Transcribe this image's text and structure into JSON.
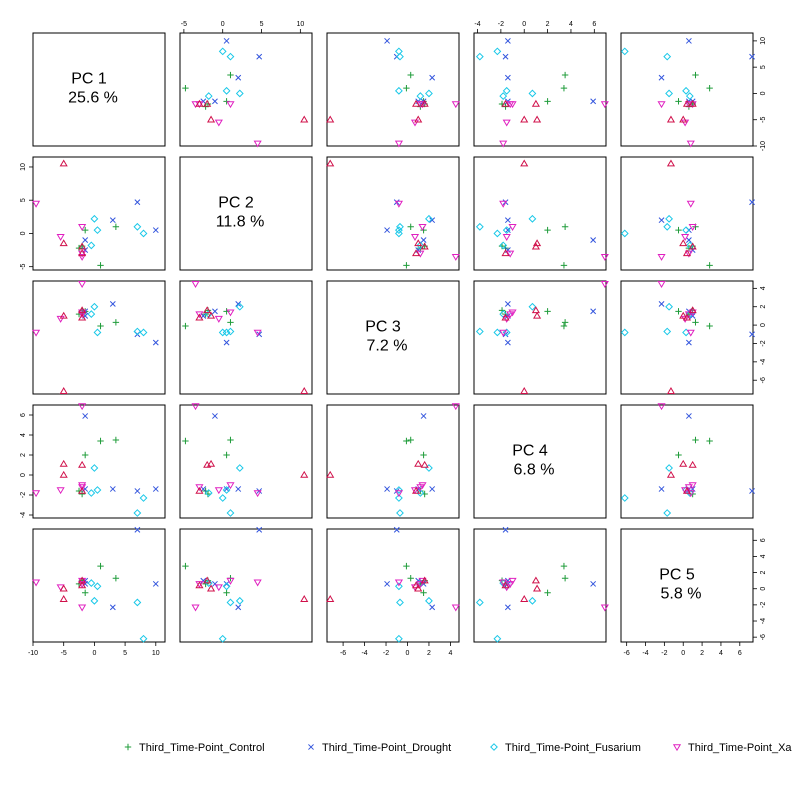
{
  "chart_data": {
    "type": "scatter",
    "subtype": "pairs-matrix",
    "grid": false,
    "legend_position": "bottom",
    "variables": [
      {
        "name": "PC 1",
        "percent": "25.6 %",
        "range": [
          -10,
          11.5
        ],
        "ticks": [
          -10,
          -5,
          0,
          5,
          10
        ]
      },
      {
        "name": "PC 2",
        "percent": "11.8 %",
        "range": [
          -5.5,
          11.5
        ],
        "ticks": [
          -5,
          0,
          5,
          10
        ]
      },
      {
        "name": "PC 3",
        "percent": "7.2 %",
        "range": [
          -7.5,
          4.8
        ],
        "ticks": [
          -6,
          -4,
          -2,
          0,
          2,
          4
        ]
      },
      {
        "name": "PC 4",
        "percent": "6.8 %",
        "range": [
          -4.3,
          7
        ],
        "ticks": [
          -4,
          -2,
          0,
          2,
          4,
          6
        ]
      },
      {
        "name": "PC 5",
        "percent": "5.8 %",
        "range": [
          -6.6,
          7.4
        ],
        "ticks": [
          -6,
          -4,
          -2,
          0,
          2,
          4,
          6
        ]
      }
    ],
    "series": [
      {
        "name": "Third_Time-Point_Control",
        "marker": "plus",
        "color": "#1f9c3a",
        "points": [
          [
            -1.5,
            0.5,
            1.5,
            2.0,
            -0.5
          ],
          [
            1.0,
            -4.8,
            -0.1,
            3.4,
            2.8
          ],
          [
            -2.5,
            -2.2,
            1.2,
            -1.6,
            0.6
          ],
          [
            -2.0,
            -1.9,
            1.6,
            -1.9,
            1.0
          ],
          [
            3.5,
            1.0,
            0.3,
            3.5,
            1.3
          ]
        ]
      },
      {
        "name": "Third_Time-Point_Drought",
        "marker": "x",
        "color": "#3355dd",
        "points": [
          [
            10.0,
            0.5,
            -1.9,
            -1.4,
            0.6
          ],
          [
            7.0,
            4.7,
            -1.0,
            -1.6,
            7.3
          ],
          [
            3.0,
            2.0,
            2.3,
            -1.4,
            -2.3
          ],
          [
            -1.5,
            -1.0,
            1.5,
            5.9,
            0.6
          ],
          [
            -1.5,
            -2.5,
            1.0,
            -1.4,
            1.0
          ]
        ]
      },
      {
        "name": "Third_Time-Point_Fusarium",
        "marker": "diamond",
        "color": "#19c8e8",
        "points": [
          [
            0.0,
            2.2,
            2.0,
            0.7,
            -1.5
          ],
          [
            7.0,
            1.0,
            -0.7,
            -3.8,
            -1.7
          ],
          [
            0.5,
            0.5,
            -0.8,
            -1.5,
            0.3
          ],
          [
            8.0,
            0.0,
            -0.8,
            -2.3,
            -6.2
          ],
          [
            -0.5,
            -1.8,
            1.2,
            -1.8,
            0.7
          ]
        ]
      },
      {
        "name": "Third_Time-Point_Xanthomonas",
        "marker": "triangle-down",
        "color": "#e020c0",
        "points": [
          [
            -9.5,
            4.5,
            -0.8,
            -1.8,
            0.8
          ],
          [
            -2.0,
            -3.5,
            4.5,
            6.9,
            -2.3
          ],
          [
            -5.5,
            -0.5,
            0.7,
            -1.5,
            0.2
          ],
          [
            -2.0,
            1.0,
            1.4,
            -1.0,
            1.0
          ],
          [
            -2.0,
            -3.0,
            1.2,
            -1.2,
            0.6
          ]
        ]
      },
      {
        "name": "Third_Time-Point_Xanthomonas",
        "marker": "triangle-up",
        "color": "#d0104a",
        "points": [
          [
            -5.0,
            10.5,
            -7.2,
            0.0,
            -1.3
          ],
          [
            -5.0,
            -1.5,
            1.0,
            1.1,
            0.0
          ],
          [
            -2.0,
            -2.0,
            1.6,
            1.0,
            1.0
          ],
          [
            -2.0,
            -3.0,
            0.8,
            -1.6,
            0.4
          ]
        ]
      }
    ]
  },
  "legend": [
    {
      "label": "Third_Time-Point_Control",
      "marker": "plus",
      "color": "#1f9c3a"
    },
    {
      "label": "Third_Time-Point_Drought",
      "marker": "x",
      "color": "#3355dd"
    },
    {
      "label": "Third_Time-Point_Fusarium",
      "marker": "diamond",
      "color": "#19c8e8"
    },
    {
      "label": "Third_Time-Point_Xanthomonas",
      "marker": "triangle-down",
      "color": "#e020c0"
    }
  ]
}
